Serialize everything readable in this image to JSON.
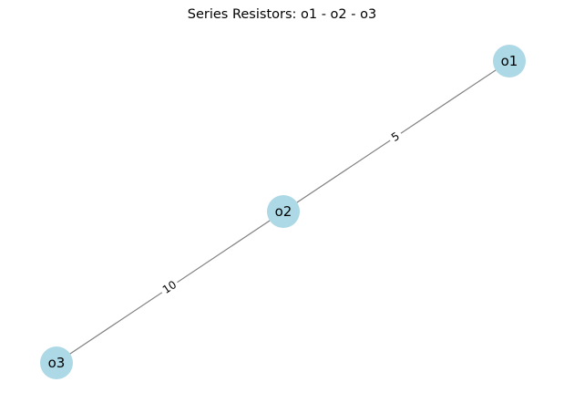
{
  "diagram": {
    "title": "Series Resistors: o1 - o2 - o3",
    "node_color": "#add8e6",
    "edge_color": "#808080",
    "nodes": [
      {
        "id": "o1",
        "label": "o1"
      },
      {
        "id": "o2",
        "label": "o2"
      },
      {
        "id": "o3",
        "label": "o3"
      }
    ],
    "edges": [
      {
        "from": "o1",
        "to": "o2",
        "label": "5"
      },
      {
        "from": "o2",
        "to": "o3",
        "label": "10"
      }
    ]
  }
}
